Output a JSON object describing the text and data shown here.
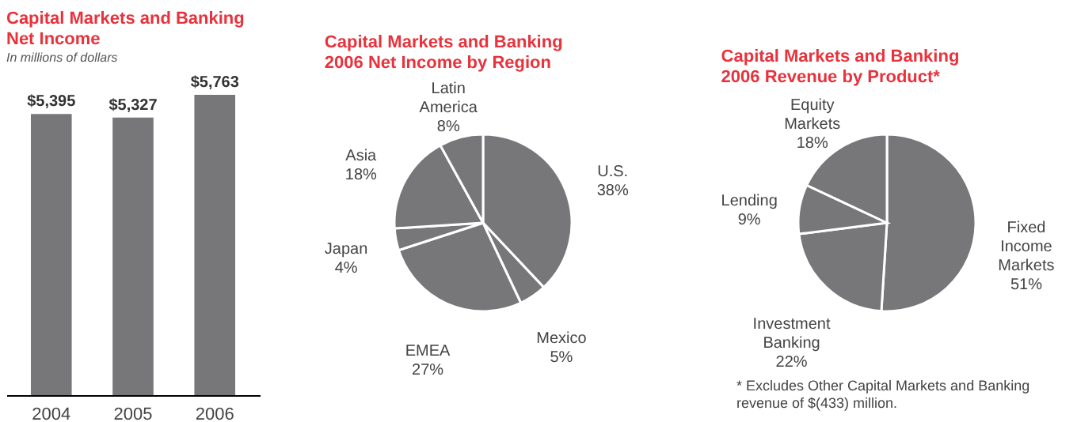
{
  "chart_data": [
    {
      "type": "bar",
      "title": "Capital Markets and Banking Net Income",
      "subtitle": "In millions of dollars",
      "categories": [
        "2004",
        "2005",
        "2006"
      ],
      "values": [
        5395,
        5327,
        5763
      ],
      "value_labels": [
        "$5,395",
        "$5,327",
        "$5,763"
      ],
      "color": "#77777a",
      "tick_labels": "x"
    },
    {
      "type": "pie",
      "title": "Capital Markets and Banking 2006 Net Income by Region",
      "categories": [
        "U.S.",
        "Mexico",
        "EMEA",
        "Japan",
        "Asia",
        "Latin America"
      ],
      "values": [
        38,
        5,
        27,
        4,
        18,
        8
      ],
      "value_labels": [
        "38%",
        "5%",
        "27%",
        "4%",
        "18%",
        "8%"
      ],
      "colors": [
        "#77777a",
        "#77777a",
        "#77777a",
        "#77777a",
        "#77777a",
        "#77777a"
      ]
    },
    {
      "type": "pie",
      "title": "Capital Markets and Banking 2006 Revenue by Product*",
      "categories": [
        "Fixed Income Markets",
        "Investment Banking",
        "Lending",
        "Equity Markets"
      ],
      "values": [
        51,
        22,
        9,
        18
      ],
      "value_labels": [
        "51%",
        "22%",
        "9%",
        "18%"
      ],
      "colors": [
        "#77777a",
        "#77777a",
        "#77777a",
        "#77777a"
      ],
      "annotations": [
        "* Excludes Other Capital Markets and Banking revenue of $(433) million."
      ]
    }
  ]
}
